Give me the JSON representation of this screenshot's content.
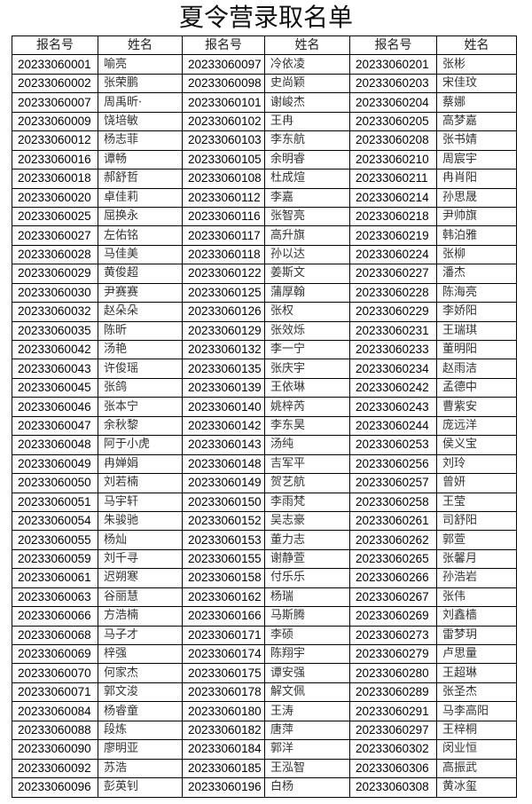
{
  "title": "夏令营录取名单",
  "headers": [
    "报名号",
    "姓名",
    "报名号",
    "姓名",
    "报名号",
    "姓名"
  ],
  "rows": [
    [
      "20233060001",
      "喻亮",
      "20233060097",
      "冷依凌",
      "20233060201",
      "张彬"
    ],
    [
      "20233060002",
      "张荣鹏",
      "20233060098",
      "史尚颖",
      "20233060203",
      "宋佳玟"
    ],
    [
      "20233060007",
      "周禹昕·",
      "20233060101",
      "谢峻杰",
      "20233060204",
      "蔡娜"
    ],
    [
      "20233060009",
      "饶培敏",
      "20233060102",
      "王冉",
      "20233060205",
      "高梦嘉"
    ],
    [
      "20233060012",
      "杨志菲",
      "20233060103",
      "李东航",
      "20233060208",
      "张书婧"
    ],
    [
      "20233060016",
      "谭畅",
      "20233060105",
      "余明睿",
      "20233060210",
      "周宸宇"
    ],
    [
      "20233060018",
      "郝舒哲",
      "20233060108",
      "杜成煊",
      "20233060211",
      "冉肖阳"
    ],
    [
      "20233060020",
      "卓佳莉",
      "20233060112",
      "李嘉",
      "20233060214",
      "孙思晟"
    ],
    [
      "20233060025",
      "屈换永",
      "20233060116",
      "张智亮",
      "20233060218",
      "尹帅旗"
    ],
    [
      "20233060027",
      "左佑铭",
      "20233060117",
      "高升旗",
      "20233060219",
      "韩泊雅"
    ],
    [
      "20233060028",
      "马佳美",
      "20233060118",
      "孙以达",
      "20233060224",
      "张柳"
    ],
    [
      "20233060029",
      "黄俊超",
      "20233060122",
      "姜斯文",
      "20233060227",
      "潘杰"
    ],
    [
      "20233060030",
      "尹赛赛",
      "20233060125",
      "蒲厚翰",
      "20233060228",
      "陈海亮"
    ],
    [
      "20233060032",
      "赵朵朵",
      "20233060126",
      "张权",
      "20233060229",
      "李娇阳"
    ],
    [
      "20233060035",
      "陈昕",
      "20233060129",
      "张效烁",
      "20233060231",
      "王瑞琪"
    ],
    [
      "20233060042",
      "汤艳",
      "20233060132",
      "李一宁",
      "20233060233",
      "董明阳"
    ],
    [
      "20233060043",
      "许俊瑶",
      "20233060135",
      "张庆宇",
      "20233060234",
      "赵雨洁"
    ],
    [
      "20233060045",
      "张鸽",
      "20233060139",
      "王依琳",
      "20233060242",
      "孟德中"
    ],
    [
      "20233060046",
      "张本宁",
      "20233060140",
      "姚梓芮",
      "20233060243",
      "曹紫安"
    ],
    [
      "20233060047",
      "余秋黎",
      "20233060142",
      "李东昊",
      "20233060244",
      "庞远洋"
    ],
    [
      "20233060048",
      "阿于小虎",
      "20233060143",
      "汤纯",
      "20233060253",
      "侯义宝"
    ],
    [
      "20233060049",
      "冉婵娟",
      "20233060148",
      "吉军平",
      "20233060256",
      "刘玲"
    ],
    [
      "20233060050",
      "刘若楠",
      "20233060149",
      "贺艺航",
      "20233060257",
      "曾妍"
    ],
    [
      "20233060051",
      "马宇轩",
      "20233060150",
      "李雨梵",
      "20233060258",
      "王莹"
    ],
    [
      "20233060054",
      "朱骏驰",
      "20233060152",
      "吴志豪",
      "20233060261",
      "司舒阳"
    ],
    [
      "20233060055",
      "杨灿",
      "20233060153",
      "董力志",
      "20233060262",
      "郭萱"
    ],
    [
      "20233060059",
      "刘千寻",
      "20233060155",
      "谢静萱",
      "20233060265",
      "张馨月"
    ],
    [
      "20233060061",
      "迟朔寒",
      "20233060158",
      "付乐乐",
      "20233060266",
      "孙浩岩"
    ],
    [
      "20233060063",
      "谷丽慧",
      "20233060162",
      "杨瑞",
      "20233060267",
      "张伟"
    ],
    [
      "20233060066",
      "方浩楠",
      "20233060166",
      "马斯腾",
      "20233060269",
      "刘鑫樯"
    ],
    [
      "20233060068",
      "马子才",
      "20233060171",
      "李硕",
      "20233060273",
      "雷梦玥"
    ],
    [
      "20233060069",
      "梓强",
      "20233060174",
      "陈翔宇",
      "20233060279",
      "卢思量"
    ],
    [
      "20233060070",
      "何家杰",
      "20233060175",
      "谭安强",
      "20233060280",
      "王超琳"
    ],
    [
      "20233060071",
      "郭文浚",
      "20233060178",
      "解文佩",
      "20233060289",
      "张圣杰"
    ],
    [
      "20233060084",
      "杨睿童",
      "20233060180",
      "王涛",
      "20233060291",
      "马李高阳"
    ],
    [
      "20233060088",
      "段炼",
      "20233060182",
      "唐萍",
      "20233060297",
      "王梓桐"
    ],
    [
      "20233060090",
      "廖明亚",
      "20233060184",
      "郭洋",
      "20233060302",
      "闵业恒"
    ],
    [
      "20233060092",
      "苏浩",
      "20233060185",
      "王泓智",
      "20233060306",
      "高振武"
    ],
    [
      "20233060096",
      "彭英钊",
      "20233060196",
      "白杨",
      "20233060308",
      "黄冰玺"
    ]
  ]
}
